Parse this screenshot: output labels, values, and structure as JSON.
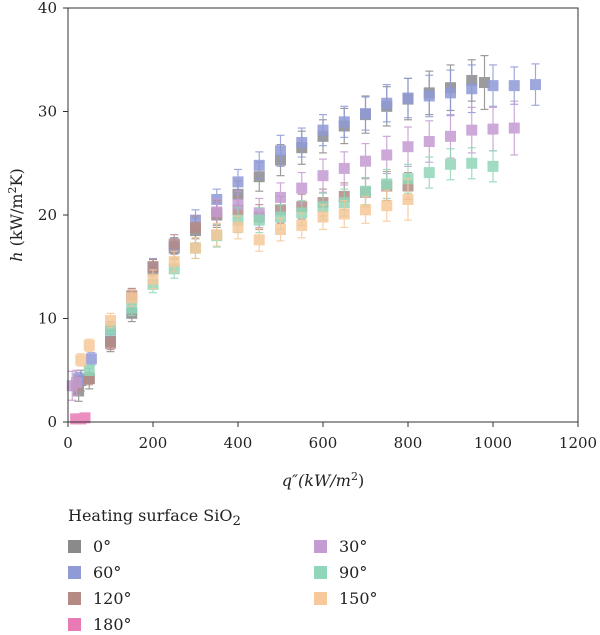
{
  "chart_data": {
    "type": "scatter",
    "xlabel_base": "q″(kW/m",
    "xlabel_sup": "2",
    "xlabel_end": ")",
    "ylabel_italic": "h",
    "ylabel_base": " (kW/m",
    "ylabel_sup": "2",
    "ylabel_end": "K)",
    "xlim": [
      0,
      1200
    ],
    "ylim": [
      0,
      40
    ],
    "xticks": [
      0,
      200,
      400,
      600,
      800,
      1000,
      1200
    ],
    "yticks": [
      0,
      10,
      20,
      30,
      40
    ],
    "grid": false,
    "legend_position": "bottom",
    "series": [
      {
        "name": "0°",
        "color": "#8a8a8a",
        "points": [
          [
            25,
            3.0
          ],
          [
            30,
            4.0
          ],
          [
            50,
            4.2
          ],
          [
            100,
            7.8
          ],
          [
            150,
            10.5
          ],
          [
            200,
            14.7
          ],
          [
            250,
            16.8
          ],
          [
            300,
            18.5
          ],
          [
            350,
            20.0
          ],
          [
            400,
            22.0
          ],
          [
            450,
            23.7
          ],
          [
            500,
            25.3
          ],
          [
            550,
            26.5
          ],
          [
            600,
            27.6
          ],
          [
            650,
            28.6
          ],
          [
            700,
            29.7
          ],
          [
            750,
            30.5
          ],
          [
            800,
            31.2
          ],
          [
            850,
            31.8
          ],
          [
            900,
            32.3
          ],
          [
            950,
            33.0
          ],
          [
            980,
            32.8
          ]
        ],
        "errors": [
          1.0,
          1.0,
          1.0,
          1.0,
          0.8,
          1.0,
          1.0,
          1.2,
          1.2,
          1.3,
          1.4,
          1.5,
          1.6,
          1.6,
          1.7,
          1.8,
          1.9,
          2.0,
          2.1,
          2.2,
          2.0,
          2.6
        ]
      },
      {
        "name": "60°",
        "color": "#8f9ad6",
        "points": [
          [
            25,
            4.2
          ],
          [
            55,
            6.1
          ],
          [
            100,
            8.9
          ],
          [
            150,
            12.0
          ],
          [
            200,
            15.0
          ],
          [
            250,
            17.0
          ],
          [
            300,
            19.5
          ],
          [
            350,
            21.5
          ],
          [
            400,
            23.2
          ],
          [
            450,
            24.8
          ],
          [
            500,
            26.2
          ],
          [
            550,
            27.0
          ],
          [
            600,
            28.2
          ],
          [
            650,
            29.0
          ],
          [
            700,
            29.8
          ],
          [
            750,
            30.8
          ],
          [
            800,
            31.3
          ],
          [
            850,
            31.5
          ],
          [
            900,
            31.8
          ],
          [
            950,
            32.2
          ],
          [
            1000,
            32.5
          ],
          [
            1050,
            32.5
          ],
          [
            1100,
            32.6
          ]
        ],
        "errors": [
          0.6,
          0.6,
          0.8,
          0.9,
          0.8,
          0.8,
          1.0,
          1.0,
          1.2,
          1.3,
          1.5,
          1.4,
          1.5,
          1.5,
          1.6,
          1.8,
          1.9,
          2.0,
          2.2,
          2.3,
          2.0,
          1.8,
          2.0
        ]
      },
      {
        "name": "120°",
        "color": "#b58a85",
        "points": [
          [
            20,
            3.5
          ],
          [
            50,
            4.2
          ],
          [
            100,
            7.6
          ],
          [
            150,
            12.2
          ],
          [
            200,
            15.0
          ],
          [
            250,
            17.2
          ],
          [
            300,
            18.8
          ],
          [
            350,
            20.2
          ],
          [
            400,
            20.5
          ],
          [
            450,
            19.8
          ],
          [
            500,
            20.5
          ],
          [
            550,
            20.8
          ],
          [
            600,
            21.2
          ],
          [
            650,
            21.8
          ],
          [
            700,
            22.2
          ],
          [
            750,
            22.8
          ],
          [
            800,
            22.8
          ]
        ],
        "errors": [
          0.8,
          0.6,
          0.6,
          0.7,
          0.7,
          0.9,
          1.1,
          1.2,
          1.3,
          1.2,
          1.3,
          1.2,
          1.3,
          1.3,
          1.4,
          1.4,
          1.3
        ]
      },
      {
        "name": "180°",
        "color": "#e87bb5",
        "points": [
          [
            18,
            0.3
          ],
          [
            30,
            0.3
          ],
          [
            40,
            0.4
          ]
        ],
        "errors": [
          0.25,
          0.25,
          0.25
        ]
      },
      {
        "name": "30°",
        "color": "#c49bd2",
        "points": [
          [
            10,
            3.5
          ],
          [
            20,
            3.8
          ],
          [
            350,
            20.3
          ],
          [
            400,
            21.0
          ],
          [
            450,
            20.2
          ],
          [
            500,
            21.7
          ],
          [
            550,
            22.6
          ],
          [
            600,
            23.8
          ],
          [
            650,
            24.5
          ],
          [
            700,
            25.2
          ],
          [
            750,
            25.8
          ],
          [
            800,
            26.6
          ],
          [
            850,
            27.1
          ],
          [
            900,
            27.6
          ],
          [
            950,
            28.2
          ],
          [
            1000,
            28.3
          ],
          [
            1050,
            28.4
          ]
        ],
        "errors": [
          1.4,
          1.2,
          1.2,
          1.3,
          1.4,
          1.4,
          1.5,
          1.6,
          1.6,
          1.7,
          1.8,
          1.9,
          2.0,
          2.1,
          2.2,
          2.1,
          2.6
        ]
      },
      {
        "name": "90°",
        "color": "#8fd7b8",
        "points": [
          [
            50,
            5.0
          ],
          [
            100,
            9.0
          ],
          [
            150,
            11.0
          ],
          [
            200,
            13.3
          ],
          [
            250,
            14.8
          ],
          [
            300,
            16.8
          ],
          [
            350,
            18.0
          ],
          [
            400,
            19.5
          ],
          [
            450,
            19.5
          ],
          [
            500,
            19.8
          ],
          [
            550,
            20.2
          ],
          [
            600,
            20.8
          ],
          [
            650,
            21.2
          ],
          [
            700,
            22.3
          ],
          [
            750,
            23.0
          ],
          [
            800,
            23.5
          ],
          [
            850,
            24.1
          ],
          [
            900,
            24.9
          ],
          [
            950,
            25.0
          ],
          [
            1000,
            24.7
          ]
        ],
        "errors": [
          0.5,
          0.6,
          0.7,
          0.8,
          0.9,
          1.0,
          1.1,
          1.2,
          1.2,
          1.2,
          1.2,
          1.3,
          1.3,
          1.3,
          1.4,
          1.4,
          1.5,
          1.5,
          1.5,
          1.5
        ]
      },
      {
        "name": "150°",
        "color": "#f7c89a",
        "points": [
          [
            30,
            6.0
          ],
          [
            50,
            7.4
          ],
          [
            100,
            9.8
          ],
          [
            150,
            12.0
          ],
          [
            200,
            13.8
          ],
          [
            250,
            15.5
          ],
          [
            300,
            16.8
          ],
          [
            350,
            18.1
          ],
          [
            400,
            18.8
          ],
          [
            450,
            17.6
          ],
          [
            500,
            18.6
          ],
          [
            550,
            19.0
          ],
          [
            600,
            19.8
          ],
          [
            650,
            20.1
          ],
          [
            700,
            20.5
          ],
          [
            750,
            20.9
          ],
          [
            800,
            21.5
          ]
        ],
        "errors": [
          0.6,
          0.6,
          0.7,
          0.8,
          0.9,
          1.0,
          1.0,
          1.1,
          1.1,
          1.1,
          1.1,
          1.2,
          1.2,
          1.3,
          1.3,
          1.5,
          2.0
        ]
      }
    ]
  },
  "legend": {
    "title_base": "Heating surface SiO",
    "title_sub": "2",
    "items": [
      {
        "label": "0°",
        "color": "#8a8a8a"
      },
      {
        "label": "30°",
        "color": "#c49bd2"
      },
      {
        "label": "60°",
        "color": "#8f9ad6"
      },
      {
        "label": "90°",
        "color": "#8fd7b8"
      },
      {
        "label": "120°",
        "color": "#b58a85"
      },
      {
        "label": "150°",
        "color": "#f7c89a"
      },
      {
        "label": "180°",
        "color": "#e87bb5"
      }
    ]
  }
}
